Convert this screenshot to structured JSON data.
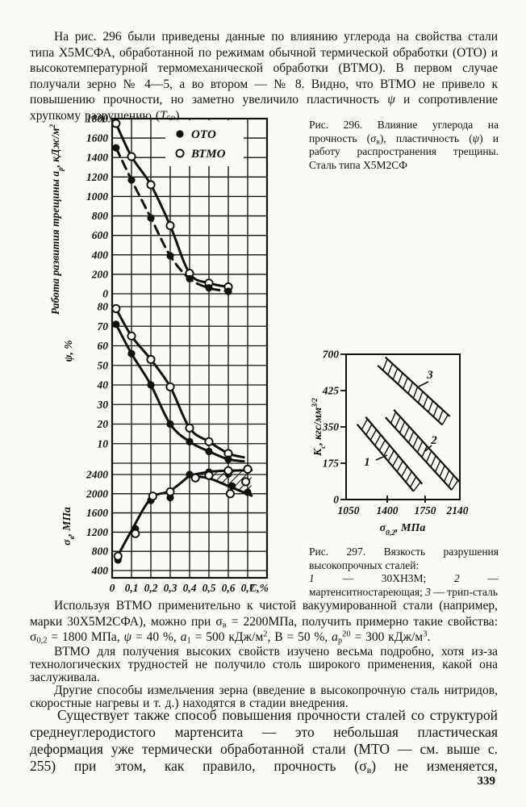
{
  "page": {
    "paragraphs": {
      "p1": "На рис. 296 были приведены данные по влиянию углерода на свойства стали типа Х5МСФА, обработанной по режимам обычной термической обработки (ОТО) и высокотемпературной термомеханической обработки (ВТМО). В первом случае получали зерно № 4—5, а во втором — № 8. Видно, что ВТМО не привело к повышению прочности, но заметно увеличило пластичность *ψ* и сопротивление хрупкому разрушению (*Т*~50~).",
      "p2": "Используя ВТМО применительно к чистой вакуумированной стали (например, марки 30Х5М2СФА), можно при σ~в~ = 2200МПа, получить примерно такие свойства: σ~0,2~ = 1800 МПа, *ψ* = 40 %, *а*~1~ = 500 кДж/м^2^, В = 50 %, *а*~р~^20^ = 300 кДж/м^3^.",
      "p3": "ВТМО для получения высоких свойств изучено весьма подробно, хотя из-за технологических трудностей не получило столь широкого применения, какой она заслуживала.",
      "p4": "Другие способы измельчения зерна (введение в высокопрочную сталь нитридов, скоростные нагревы и т. д.) находятся в стадии внедрения.",
      "p5": "Существует также способ повышения прочности сталей со структурой среднеуглеродистого мартенсита — это небольшая пластическая деформация уже термически обработанной стали (МТО — см. выше с. 255) при этом, как правило, прочность (σ~в~) не изменяется,"
    },
    "page_number": "339",
    "ink_color": "#101010",
    "paper_color": "#fbfaf5"
  },
  "fig296": {
    "caption": "Рис. 296. Влияние углерода на прочность (σ~в~), пластичность (*ψ*) и работу распространения трещины. Сталь типа Х5М2СФ"
  },
  "fig297": {
    "caption_title": "Рис. 297. Вязкость разрушения высокопрочных сталей:",
    "caption_items": "*1* — 30ХН3М; *2* — мартенситностареющая; *3* — трип-сталь"
  },
  "chart_data": [
    {
      "type": "line",
      "figure": "Рис. 296",
      "xlabel": "С,%",
      "x_ticks": [
        0,
        0.1,
        0.2,
        0.3,
        0.4,
        0.5,
        0.6,
        0.7
      ],
      "x_tick_labels": [
        "0",
        "0,1",
        "0,2",
        "0,3",
        "0,4",
        "0,5",
        "0,6",
        "0,7"
      ],
      "xlim": [
        0,
        0.8
      ],
      "grid": "on",
      "legend_position": "top-center-inside",
      "legend": [
        {
          "label": "ОТО",
          "marker": "filled"
        },
        {
          "label": "ВТМО",
          "marker": "open"
        }
      ],
      "panels": [
        {
          "ylabel": "Работа развития трещины *а*~р~, кДж/м^2^",
          "ylim": [
            0,
            1800
          ],
          "yticks": [
            0,
            200,
            400,
            600,
            800,
            1000,
            1200,
            1400,
            1600,
            1800
          ],
          "series": [
            {
              "name": "ВТМО",
              "marker": "open",
              "line": "solid",
              "points": [
                [
                  0.02,
                  1750
                ],
                [
                  0.1,
                  1410
                ],
                [
                  0.2,
                  1120
                ],
                [
                  0.3,
                  700
                ],
                [
                  0.4,
                  210
                ],
                [
                  0.5,
                  110
                ],
                [
                  0.6,
                  70
                ]
              ]
            },
            {
              "name": "ОТО",
              "marker": "filled",
              "line": "dashed",
              "points": [
                [
                  0.02,
                  1500
                ],
                [
                  0.1,
                  1170
                ],
                [
                  0.2,
                  780
                ],
                [
                  0.3,
                  390
                ],
                [
                  0.4,
                  155
                ],
                [
                  0.5,
                  60
                ],
                [
                  0.6,
                  25
                ]
              ]
            }
          ]
        },
        {
          "ylabel": "*ψ*, %",
          "ylim": [
            0,
            80
          ],
          "yticks": [
            10,
            20,
            30,
            40,
            50,
            60,
            70,
            80
          ],
          "series": [
            {
              "name": "ВТМО",
              "marker": "open",
              "line": "solid",
              "points": [
                [
                  0.02,
                  79
                ],
                [
                  0.1,
                  65
                ],
                [
                  0.2,
                  53
                ],
                [
                  0.3,
                  39
                ],
                [
                  0.4,
                  18
                ],
                [
                  0.5,
                  11
                ],
                [
                  0.6,
                  5
                ]
              ],
              "tail": [
                0.68,
                3
              ]
            },
            {
              "name": "ОТО",
              "marker": "filled",
              "line": "solid",
              "points": [
                [
                  0.02,
                  71
                ],
                [
                  0.1,
                  56
                ],
                [
                  0.2,
                  40
                ],
                [
                  0.3,
                  20
                ],
                [
                  0.4,
                  11
                ],
                [
                  0.5,
                  6
                ],
                [
                  0.6,
                  2
                ]
              ],
              "tail": [
                0.68,
                1
              ]
            }
          ]
        },
        {
          "ylabel": "σ~в~, МПа",
          "ylim": [
            300,
            2600
          ],
          "yticks": [
            400,
            800,
            1200,
            1600,
            2000,
            2400
          ],
          "series": [
            {
              "name": "common",
              "marker": "none",
              "line": "solid",
              "points": [
                [
                  0.02,
                  640
                ],
                [
                  0.1,
                  1230
                ],
                [
                  0.2,
                  1900
                ],
                [
                  0.3,
                  2060
                ],
                [
                  0.4,
                  2380
                ]
              ]
            },
            {
              "name": "upper",
              "marker": "none",
              "line": "solid",
              "points": [
                [
                  0.4,
                  2380
                ],
                [
                  0.5,
                  2455
                ],
                [
                  0.6,
                  2480
                ],
                [
                  0.72,
                  2490
                ]
              ]
            },
            {
              "name": "lower",
              "marker": "none",
              "line": "solid",
              "points": [
                [
                  0.4,
                  2380
                ],
                [
                  0.5,
                  2320
                ],
                [
                  0.6,
                  2160
                ],
                [
                  0.72,
                  1960
                ]
              ]
            }
          ],
          "hatch_between": [
            "upper",
            "lower"
          ],
          "scatter": [
            {
              "marker": "filled",
              "points": [
                [
                  0.03,
                  620
                ],
                [
                  0.12,
                  1270
                ],
                [
                  0.2,
                  1860
                ],
                [
                  0.3,
                  1920
                ],
                [
                  0.4,
                  2400
                ],
                [
                  0.5,
                  2450
                ],
                [
                  0.6,
                  2410
                ],
                [
                  0.62,
                  2160
                ],
                [
                  0.7,
                  2030
                ]
              ]
            },
            {
              "marker": "open",
              "points": [
                [
                  0.03,
                  700
                ],
                [
                  0.12,
                  1170
                ],
                [
                  0.21,
                  1950
                ],
                [
                  0.3,
                  2040
                ],
                [
                  0.43,
                  2330
                ],
                [
                  0.5,
                  2380
                ],
                [
                  0.6,
                  2480
                ],
                [
                  0.61,
                  2000
                ],
                [
                  0.7,
                  2510
                ],
                [
                  0.69,
                  2250
                ]
              ]
            }
          ]
        }
      ]
    },
    {
      "type": "band",
      "figure": "Рис. 297",
      "ylabel": "*К*~с~, кгс/мм^3/2^",
      "xlabel": "σ~0,2~, МПа",
      "y_tick_labels": [
        "700",
        "425",
        "350",
        "175",
        "0"
      ],
      "x_tick_labels": [
        "1050",
        "1400",
        "1750",
        "2140"
      ],
      "bands": [
        {
          "label": "1",
          "steel": "30ХН3М",
          "x1": 0.135,
          "y1": 0.457,
          "x2": 0.631,
          "y2": 0.918
        },
        {
          "label": "2",
          "steel": "мартенситностареющая",
          "x1": 0.383,
          "y1": 0.408,
          "x2": 0.965,
          "y2": 0.908
        },
        {
          "label": "3",
          "steel": "трип-сталь",
          "x1": 0.312,
          "y1": 0.049,
          "x2": 0.879,
          "y2": 0.457
        }
      ]
    }
  ]
}
